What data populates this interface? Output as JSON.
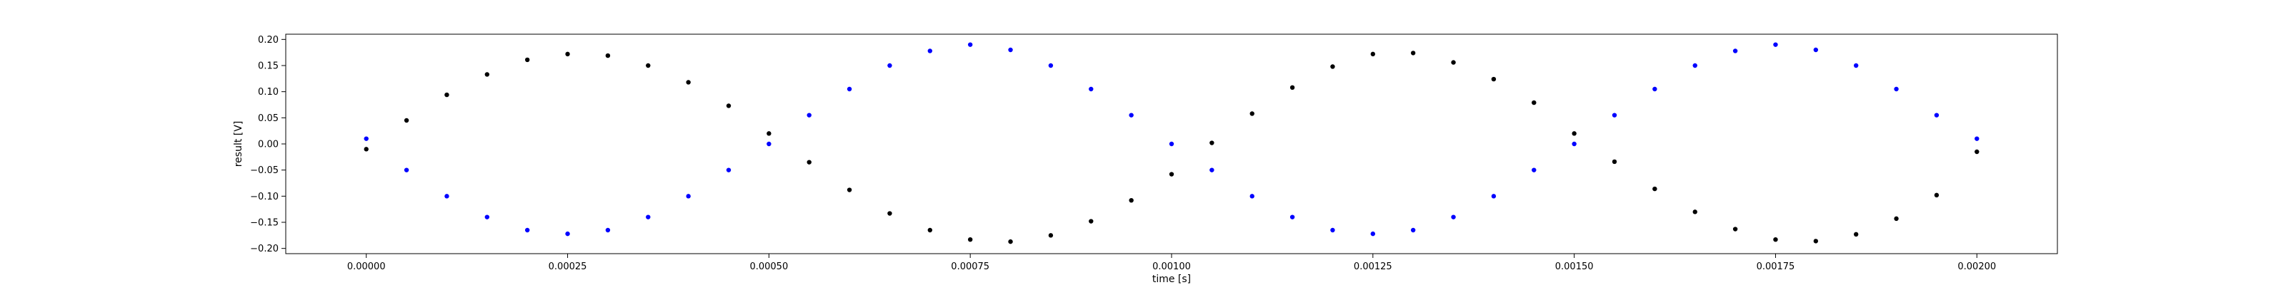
{
  "chart_data": {
    "type": "scatter",
    "title": "",
    "xlabel": "time [s]",
    "ylabel": "result [V]",
    "xlim": [
      -0.0001,
      0.0021
    ],
    "ylim": [
      -0.21,
      0.21
    ],
    "grid": false,
    "x_ticks": [
      0.0,
      0.00025,
      0.0005,
      0.00075,
      0.001,
      0.00125,
      0.0015,
      0.00175,
      0.002
    ],
    "x_tick_labels": [
      "0.00000",
      "0.00025",
      "0.00050",
      "0.00075",
      "0.00100",
      "0.00125",
      "0.00150",
      "0.00175",
      "0.00200"
    ],
    "y_ticks": [
      -0.2,
      -0.15,
      -0.1,
      -0.05,
      0.0,
      0.05,
      0.1,
      0.15,
      0.2
    ],
    "y_tick_labels": [
      "−0.20",
      "−0.15",
      "−0.10",
      "−0.05",
      "0.00",
      "0.05",
      "0.10",
      "0.15",
      "0.20"
    ],
    "series": [
      {
        "color": "#000000",
        "x": [
          0.0,
          5e-05,
          0.0001,
          0.00015,
          0.0002,
          0.00025,
          0.0003,
          0.00035,
          0.0004,
          0.00045,
          0.0005,
          0.00055,
          0.0006,
          0.00065,
          0.0007,
          0.00075,
          0.0008,
          0.00085,
          0.0009,
          0.00095,
          0.001,
          0.00105,
          0.0011,
          0.00115,
          0.0012,
          0.00125,
          0.0013,
          0.00135,
          0.0014,
          0.00145,
          0.0015,
          0.00155,
          0.0016,
          0.00165,
          0.0017,
          0.00175,
          0.0018,
          0.00185,
          0.0019,
          0.00195,
          0.002
        ],
        "y": [
          -0.01,
          0.045,
          0.094,
          0.133,
          0.161,
          0.172,
          0.169,
          0.15,
          0.118,
          0.073,
          0.02,
          -0.035,
          -0.088,
          -0.133,
          -0.165,
          -0.183,
          -0.187,
          -0.175,
          -0.148,
          -0.108,
          -0.058,
          0.002,
          0.058,
          0.108,
          0.148,
          0.172,
          0.174,
          0.156,
          0.124,
          0.079,
          0.02,
          -0.034,
          -0.086,
          -0.13,
          -0.163,
          -0.183,
          -0.186,
          -0.173,
          -0.143,
          -0.098,
          -0.015
        ]
      },
      {
        "color": "#0000ff",
        "x": [
          0.0,
          5e-05,
          0.0001,
          0.00015,
          0.0002,
          0.00025,
          0.0003,
          0.00035,
          0.0004,
          0.00045,
          0.0005,
          0.00055,
          0.0006,
          0.00065,
          0.0007,
          0.00075,
          0.0008,
          0.00085,
          0.0009,
          0.00095,
          0.001,
          0.00105,
          0.0011,
          0.00115,
          0.0012,
          0.00125,
          0.0013,
          0.00135,
          0.0014,
          0.00145,
          0.0015,
          0.00155,
          0.0016,
          0.00165,
          0.0017,
          0.00175,
          0.0018,
          0.00185,
          0.0019,
          0.00195,
          0.002
        ],
        "y": [
          0.01,
          -0.05,
          -0.1,
          -0.14,
          -0.165,
          -0.172,
          -0.165,
          -0.14,
          -0.1,
          -0.05,
          0.0,
          0.055,
          0.105,
          0.15,
          0.178,
          0.19,
          0.18,
          0.15,
          0.105,
          0.055,
          0.0,
          -0.05,
          -0.1,
          -0.14,
          -0.165,
          -0.172,
          -0.165,
          -0.14,
          -0.1,
          -0.05,
          0.0,
          0.055,
          0.105,
          0.15,
          0.178,
          0.19,
          0.18,
          0.15,
          0.105,
          0.055,
          0.01
        ]
      }
    ]
  }
}
